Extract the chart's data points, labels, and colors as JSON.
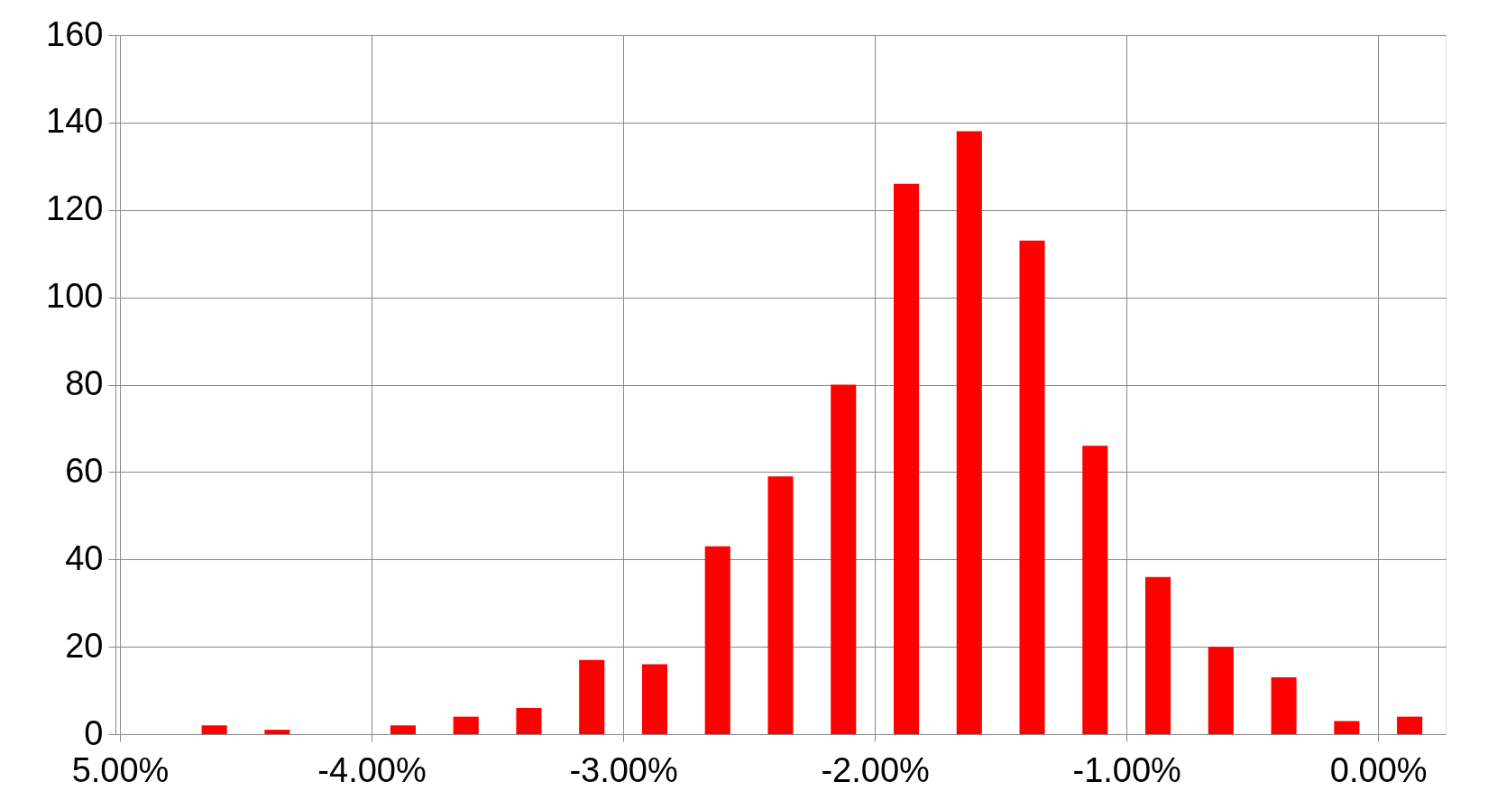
{
  "chart_data": {
    "type": "bar",
    "x": [
      -4.625,
      -4.375,
      -4.125,
      -3.875,
      -3.625,
      -3.375,
      -3.125,
      -2.875,
      -2.625,
      -2.375,
      -2.125,
      -1.875,
      -1.625,
      -1.375,
      -1.125,
      -0.875,
      -0.625,
      -0.375,
      -0.125,
      0.125
    ],
    "series": [
      {
        "color": "#ff0000",
        "values": [
          2,
          1,
          0,
          2,
          4,
          6,
          17,
          16,
          43,
          59,
          80,
          126,
          138,
          113,
          66,
          36,
          20,
          13,
          3,
          4
        ]
      }
    ],
    "xlim": [
      -5,
      0.25
    ],
    "xticks": [
      {
        "value": -5,
        "label": "5.00%"
      },
      {
        "value": -4,
        "label": "-4.00%"
      },
      {
        "value": -3,
        "label": "-3.00%"
      },
      {
        "value": -2,
        "label": "-2.00%"
      },
      {
        "value": -1,
        "label": "-1.00%"
      },
      {
        "value": 0,
        "label": "0.00%"
      }
    ],
    "ylim": [
      0,
      160
    ],
    "yticks": [
      0,
      20,
      40,
      60,
      80,
      100,
      120,
      140,
      160
    ],
    "grid": true
  }
}
